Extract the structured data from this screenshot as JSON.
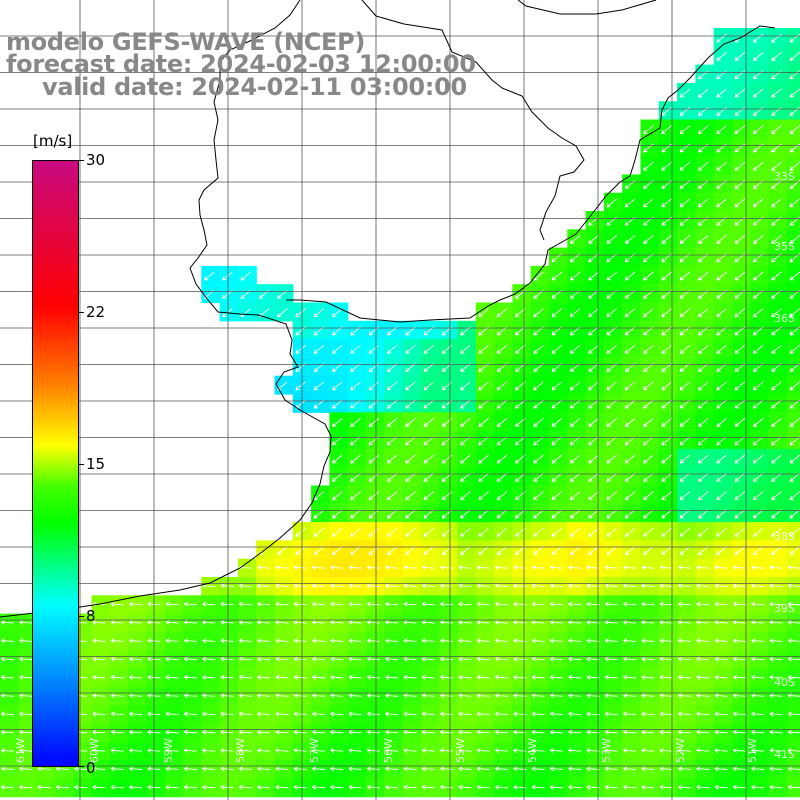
{
  "title": {
    "model": "modelo GEFS-WAVE (NCEP)",
    "forecast": "forecast date: 2024-02-03 12:00:00",
    "valid": "valid date: 2024-02-11 03:00:00"
  },
  "colorbar": {
    "unit": "[m/s]",
    "ticks": [
      "30",
      "22",
      "15",
      "8",
      "0"
    ],
    "colors": [
      "#0000ff",
      "#00ffff",
      "#00ff00",
      "#ffff00",
      "#ff8000",
      "#ff0000",
      "#c80a80"
    ]
  },
  "axis_labels": {
    "right": [
      "33S",
      "35S",
      "36S",
      "38S",
      "39S",
      "40S",
      "41S"
    ],
    "bottom": [
      "61W",
      "60W",
      "59W",
      "58W",
      "57W",
      "56W",
      "55W",
      "54W",
      "53W",
      "52W",
      "51W"
    ]
  },
  "colors": {
    "land": "#ffffff",
    "coast": "#000000",
    "grid": "#555555",
    "arrow": "#ffffff",
    "title": "#888888"
  }
}
